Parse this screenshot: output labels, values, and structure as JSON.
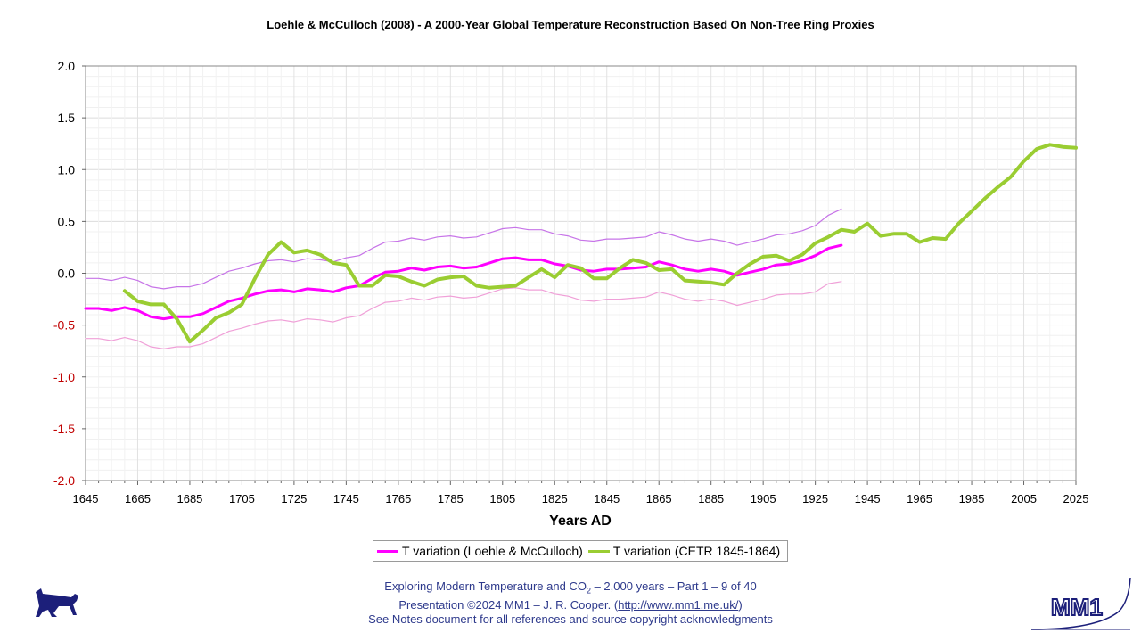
{
  "chart_data": {
    "type": "line",
    "title": "Loehle & McCulloch (2008) - A 2000-Year Global Temperature Reconstruction Based On Non-Tree Ring Proxies",
    "xlabel": "Years AD",
    "ylabel": "",
    "xlim": [
      1645,
      2025
    ],
    "ylim": [
      -2.0,
      2.0
    ],
    "x_ticks": [
      "1645",
      "1665",
      "1685",
      "1705",
      "1725",
      "1745",
      "1765",
      "1785",
      "1805",
      "1825",
      "1845",
      "1865",
      "1885",
      "1905",
      "1925",
      "1945",
      "1965",
      "1985",
      "2005",
      "2025"
    ],
    "y_ticks": [
      "2.0",
      "1.5",
      "1.0",
      "0.5",
      "0.0",
      "-0.5",
      "-1.0",
      "-1.5",
      "-2.0"
    ],
    "grid": true,
    "legend_position": "bottom",
    "series": [
      {
        "name": "T variation (Loehle & McCulloch)",
        "color": "#ff00ff",
        "x": [
          1645,
          1650,
          1655,
          1660,
          1665,
          1670,
          1675,
          1680,
          1685,
          1690,
          1695,
          1700,
          1705,
          1710,
          1715,
          1720,
          1725,
          1730,
          1735,
          1740,
          1745,
          1750,
          1755,
          1760,
          1765,
          1770,
          1775,
          1780,
          1785,
          1790,
          1795,
          1800,
          1805,
          1810,
          1815,
          1820,
          1825,
          1830,
          1835,
          1840,
          1845,
          1850,
          1855,
          1860,
          1865,
          1870,
          1875,
          1880,
          1885,
          1890,
          1895,
          1900,
          1905,
          1910,
          1915,
          1920,
          1925,
          1930,
          1935
        ],
        "values": [
          -0.34,
          -0.34,
          -0.36,
          -0.33,
          -0.36,
          -0.42,
          -0.44,
          -0.42,
          -0.42,
          -0.39,
          -0.33,
          -0.27,
          -0.24,
          -0.2,
          -0.17,
          -0.16,
          -0.18,
          -0.15,
          -0.16,
          -0.18,
          -0.14,
          -0.12,
          -0.05,
          0.01,
          0.02,
          0.05,
          0.03,
          0.06,
          0.07,
          0.05,
          0.06,
          0.1,
          0.14,
          0.15,
          0.13,
          0.13,
          0.09,
          0.07,
          0.03,
          0.02,
          0.04,
          0.04,
          0.05,
          0.06,
          0.11,
          0.08,
          0.04,
          0.02,
          0.04,
          0.02,
          -0.02,
          0.01,
          0.04,
          0.08,
          0.09,
          0.12,
          0.17,
          0.24,
          0.27
        ]
      },
      {
        "name": "Upper bound",
        "color": "#c774e8",
        "x": [
          1645,
          1650,
          1655,
          1660,
          1665,
          1670,
          1675,
          1680,
          1685,
          1690,
          1695,
          1700,
          1705,
          1710,
          1715,
          1720,
          1725,
          1730,
          1735,
          1740,
          1745,
          1750,
          1755,
          1760,
          1765,
          1770,
          1775,
          1780,
          1785,
          1790,
          1795,
          1800,
          1805,
          1810,
          1815,
          1820,
          1825,
          1830,
          1835,
          1840,
          1845,
          1850,
          1855,
          1860,
          1865,
          1870,
          1875,
          1880,
          1885,
          1890,
          1895,
          1900,
          1905,
          1910,
          1915,
          1920,
          1925,
          1930,
          1935
        ],
        "values": [
          -0.05,
          -0.05,
          -0.07,
          -0.04,
          -0.07,
          -0.13,
          -0.15,
          -0.13,
          -0.13,
          -0.1,
          -0.04,
          0.02,
          0.05,
          0.09,
          0.12,
          0.13,
          0.11,
          0.14,
          0.13,
          0.11,
          0.15,
          0.17,
          0.24,
          0.3,
          0.31,
          0.34,
          0.32,
          0.35,
          0.36,
          0.34,
          0.35,
          0.39,
          0.43,
          0.44,
          0.42,
          0.42,
          0.38,
          0.36,
          0.32,
          0.31,
          0.33,
          0.33,
          0.34,
          0.35,
          0.4,
          0.37,
          0.33,
          0.31,
          0.33,
          0.31,
          0.27,
          0.3,
          0.33,
          0.37,
          0.38,
          0.41,
          0.46,
          0.56,
          0.62
        ]
      },
      {
        "name": "Lower bound",
        "color": "#f0a0d8",
        "x": [
          1645,
          1650,
          1655,
          1660,
          1665,
          1670,
          1675,
          1680,
          1685,
          1690,
          1695,
          1700,
          1705,
          1710,
          1715,
          1720,
          1725,
          1730,
          1735,
          1740,
          1745,
          1750,
          1755,
          1760,
          1765,
          1770,
          1775,
          1780,
          1785,
          1790,
          1795,
          1800,
          1805,
          1810,
          1815,
          1820,
          1825,
          1830,
          1835,
          1840,
          1845,
          1850,
          1855,
          1860,
          1865,
          1870,
          1875,
          1880,
          1885,
          1890,
          1895,
          1900,
          1905,
          1910,
          1915,
          1920,
          1925,
          1930,
          1935
        ],
        "values": [
          -0.63,
          -0.63,
          -0.65,
          -0.62,
          -0.65,
          -0.71,
          -0.73,
          -0.71,
          -0.71,
          -0.68,
          -0.62,
          -0.56,
          -0.53,
          -0.49,
          -0.46,
          -0.45,
          -0.47,
          -0.44,
          -0.45,
          -0.47,
          -0.43,
          -0.41,
          -0.34,
          -0.28,
          -0.27,
          -0.24,
          -0.26,
          -0.23,
          -0.22,
          -0.24,
          -0.23,
          -0.19,
          -0.15,
          -0.14,
          -0.16,
          -0.16,
          -0.2,
          -0.22,
          -0.26,
          -0.27,
          -0.25,
          -0.25,
          -0.24,
          -0.23,
          -0.18,
          -0.21,
          -0.25,
          -0.27,
          -0.25,
          -0.27,
          -0.31,
          -0.28,
          -0.25,
          -0.21,
          -0.2,
          -0.2,
          -0.18,
          -0.1,
          -0.08
        ]
      },
      {
        "name": "T variation (CETR 1845-1864)",
        "color": "#9acd32",
        "x": [
          1660,
          1665,
          1670,
          1675,
          1680,
          1685,
          1690,
          1695,
          1700,
          1705,
          1710,
          1715,
          1720,
          1725,
          1730,
          1735,
          1740,
          1745,
          1750,
          1755,
          1760,
          1765,
          1770,
          1775,
          1780,
          1785,
          1790,
          1795,
          1800,
          1805,
          1810,
          1815,
          1820,
          1825,
          1830,
          1835,
          1840,
          1845,
          1850,
          1855,
          1860,
          1865,
          1870,
          1875,
          1880,
          1885,
          1890,
          1895,
          1900,
          1905,
          1910,
          1915,
          1920,
          1925,
          1930,
          1935,
          1940,
          1945,
          1950,
          1955,
          1960,
          1965,
          1970,
          1975,
          1980,
          1985,
          1990,
          1995,
          2000,
          2005,
          2010,
          2015,
          2020,
          2025
        ],
        "values": [
          -0.17,
          -0.27,
          -0.3,
          -0.3,
          -0.44,
          -0.66,
          -0.55,
          -0.43,
          -0.38,
          -0.3,
          -0.05,
          0.18,
          0.3,
          0.2,
          0.22,
          0.18,
          0.1,
          0.08,
          -0.12,
          -0.12,
          -0.02,
          -0.03,
          -0.08,
          -0.12,
          -0.06,
          -0.04,
          -0.03,
          -0.12,
          -0.14,
          -0.13,
          -0.12,
          -0.04,
          0.04,
          -0.04,
          0.08,
          0.05,
          -0.05,
          -0.05,
          0.05,
          0.13,
          0.1,
          0.03,
          0.04,
          -0.07,
          -0.08,
          -0.09,
          -0.11,
          0.0,
          0.09,
          0.16,
          0.17,
          0.12,
          0.18,
          0.29,
          0.35,
          0.42,
          0.4,
          0.48,
          0.36,
          0.38,
          0.38,
          0.3,
          0.34,
          0.33,
          0.48,
          0.6,
          0.72,
          0.83,
          0.93,
          1.08,
          1.2,
          1.24,
          1.22,
          1.21
        ]
      }
    ]
  },
  "legend": {
    "item1": "T variation (Loehle & McCulloch)",
    "item2": "T variation (CETR 1845-1864)"
  },
  "footer": {
    "line1_pre": "Exploring Modern Temperature and CO",
    "line1_sub": "2",
    "line1_post": " – 2,000 years – Part 1 – 9 of 40",
    "line2_pre": "Presentation ©2024 MM1 – J. R. Cooper. (",
    "line2_link": "http://www.mm1.me.uk/",
    "line2_post": ")",
    "line3": "See Notes document for all references and source copyright acknowledgments"
  },
  "colors": {
    "negative_tick": "#c00000",
    "footer_text": "#2e3a8c",
    "logo": "#1c1f7a"
  },
  "icons": {
    "left_logo": "dog-icon",
    "right_logo": "mm1-logo-icon"
  },
  "logo_text": "MM1"
}
